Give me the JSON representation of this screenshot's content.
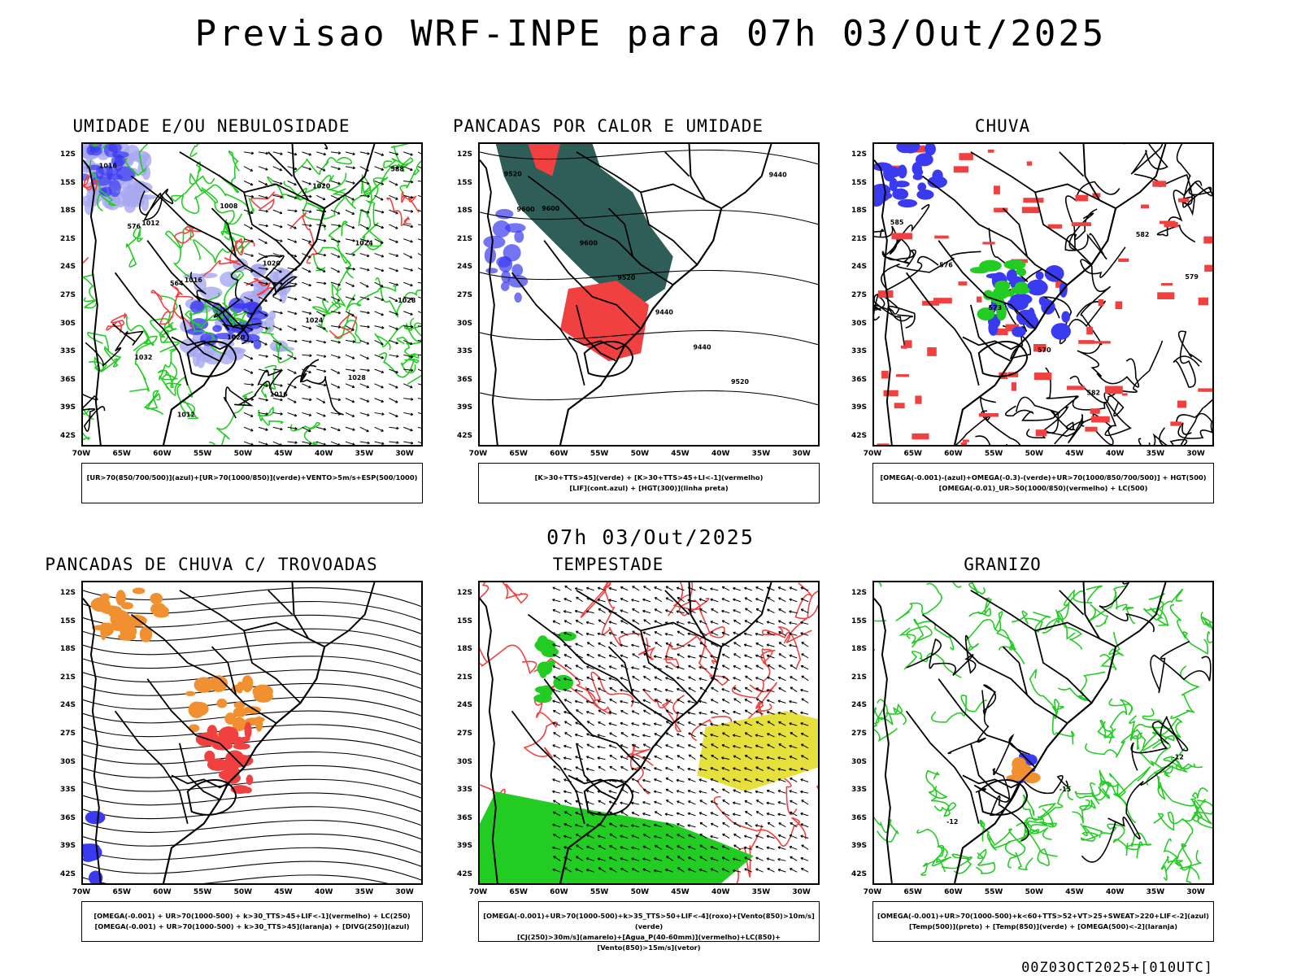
{
  "title": "Previsao WRF-INPE  para 07h 03/Out/2025",
  "mid_title": "07h 03/Out/2025",
  "footer": "00Z03OCT2025+[010UTC]",
  "lat_labels": [
    "12S",
    "15S",
    "18S",
    "21S",
    "24S",
    "27S",
    "30S",
    "33S",
    "36S",
    "39S",
    "42S"
  ],
  "lon_labels": [
    "70W",
    "65W",
    "60W",
    "55W",
    "50W",
    "45W",
    "40W",
    "35W",
    "30W"
  ],
  "panels": [
    {
      "title": "UMIDADE E/OU NEBULOSIDADE",
      "legend": [
        "[UR>70(850/700/500)](azul)+[UR>70(1000/850)](verde)+VENTO>5m/s+ESP(500/1000)"
      ],
      "fields": [
        "blue-shade",
        "green-contour",
        "red-dashed",
        "arrows-se",
        "black-isobars"
      ]
    },
    {
      "title": "PANCADAS POR CALOR E UMIDADE",
      "legend": [
        "[K>30+TTS>45](verde) + [K>30+TTS>45+LI<-1](vermelho)",
        "[LIF](cont.azul) + [HGT(300)](linha preta)"
      ],
      "fields": [
        "teal-shade",
        "red-shade",
        "black-height"
      ]
    },
    {
      "title": "CHUVA",
      "legend": [
        "[OMEGA(-0.001)-(azul)+OMEGA(-0.3)-(verde)+UR>70(1000/850/700/500)] + HGT(500)",
        "[OMEGA(-0.01)_UR>50(1000/850)(vermelho) + LC(500)"
      ],
      "fields": [
        "red-patches",
        "blue-patches",
        "streamlines"
      ]
    },
    {
      "title": "PANCADAS DE CHUVA C/ TROVOADAS",
      "legend": [
        "[OMEGA(-0.001) + UR>70(1000-500) + k>30_TTS>45+LIF<-1](vermelho) + LC(250)",
        "[OMEGA(-0.001) + UR>70(1000-500) + k>30_TTS>45](laranja) + [DIVG(250)](azul)"
      ],
      "fields": [
        "orange-patches",
        "streamlines-east"
      ]
    },
    {
      "title": "TEMPESTADE",
      "legend": [
        "[OMEGA(-0.001)+UR>70(1000-500)+k>35_TTS>50+LIF<-4](roxo)+[Vento(850)>10m/s](verde)",
        "[CJ(250)>30m/s](amarelo)+[Agua_P(40-60mm)](vermelho)+LC(850)+[Vento(850)>15m/s](vetor)"
      ],
      "fields": [
        "green-south",
        "yellow-jet",
        "red-lines",
        "arrows"
      ]
    },
    {
      "title": "GRANIZO",
      "legend": [
        "[OMEGA(-0.001)+UR>70(1000-500)+k<60+TTS>52+VT>25+SWEAT>220+LIF<-2](azul)",
        "[Temp(500)](preto) + [Temp(850)](verde) + [OMEGA(500)<-2](laranja)"
      ],
      "fields": [
        "green-contours",
        "black-temp"
      ]
    }
  ],
  "contour_labels": {
    "p1": [
      "1016",
      "1012",
      "1016",
      "1020",
      "1016",
      "1020",
      "1024",
      "1028",
      "1032",
      "1012",
      "1008",
      "1020",
      "1024",
      "1028",
      "588",
      "576",
      "564"
    ],
    "p2": [
      "9520",
      "9600",
      "9600",
      "9520",
      "9440",
      "9440",
      "9520",
      "9440",
      "9600"
    ],
    "p3": [
      "585",
      "576",
      "573",
      "570",
      "582",
      "582",
      "579"
    ],
    "p6": [
      "-12",
      "-15",
      "-12"
    ]
  },
  "colors": {
    "blue": "#3a3af0",
    "lightblue": "#a8a8f0",
    "green": "#22cc22",
    "red": "#f04040",
    "teal": "#2f5e58",
    "orange": "#f09030",
    "yellow": "#e6e03c",
    "purple": "#a020f0"
  }
}
